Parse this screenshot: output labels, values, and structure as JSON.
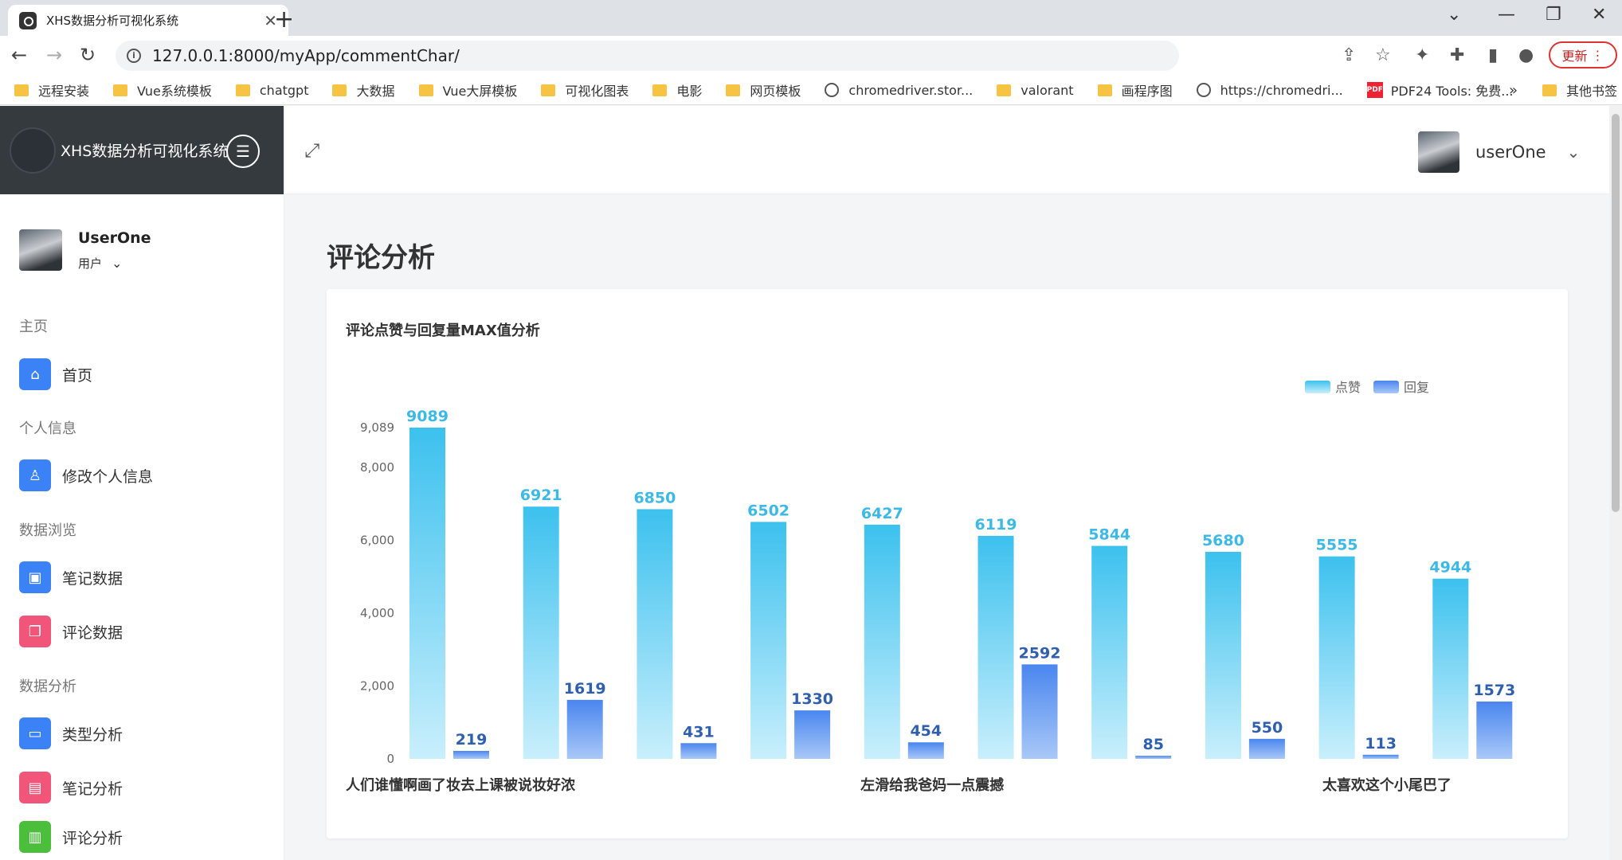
{
  "browser": {
    "tab_title": "XHS数据分析可视化系统",
    "url": "127.0.0.1:8000/myApp/commentChar/",
    "update_label": "更新",
    "bookmarks": [
      "远程安装",
      "Vue系统模板",
      "chatgpt",
      "大数据",
      "Vue大屏模板",
      "可视化图表",
      "电影",
      "网页模板",
      "chromedriver.stor...",
      "valorant",
      "画程序图",
      "https://chromedri...",
      "PDF24 Tools: 免费..."
    ],
    "bookmarks_other": "其他书签",
    "bookmarks_more": "»"
  },
  "sidebar": {
    "brand": "XHS数据分析可视化系统",
    "profile_name": "UserOne",
    "profile_role": "用户",
    "sections": {
      "home": "主页",
      "personal": "个人信息",
      "browse": "数据浏览",
      "analysis": "数据分析"
    },
    "items": {
      "home": "首页",
      "edit_profile": "修改个人信息",
      "note_data": "笔记数据",
      "comment_data": "评论数据",
      "type_analysis": "类型分析",
      "note_analysis": "笔记分析",
      "comment_analysis": "评论分析"
    }
  },
  "topbar": {
    "user_name": "userOne"
  },
  "page": {
    "title": "评论分析"
  },
  "card": {
    "title": "评论点赞与回复量MAX值分析"
  },
  "colors": {
    "like_top": "#3cc1ee",
    "like_bottom": "#c9effc",
    "reply_top": "#4a86ef",
    "reply_bottom": "#a9c8f7",
    "label_like": "#3cb9e6",
    "label_reply": "#2f5faf"
  },
  "chart_data": {
    "type": "bar",
    "categories": [
      "人们谁懂啊画了妆去上课被说妆好浓",
      "",
      "",
      "",
      "左滑给我爸妈一点震撼",
      "",
      "",
      "",
      "太喜欢这个小尾巴了",
      ""
    ],
    "series": [
      {
        "name": "点赞",
        "values": [
          9089,
          6921,
          6850,
          6502,
          6427,
          6119,
          5844,
          5680,
          5555,
          4944
        ]
      },
      {
        "name": "回复",
        "values": [
          219,
          1619,
          431,
          1330,
          454,
          2592,
          85,
          550,
          113,
          1573
        ]
      }
    ],
    "y_ticks": [
      "0",
      "2,000",
      "4,000",
      "6,000",
      "8,000",
      "9,089"
    ],
    "ylim": [
      0,
      9089
    ],
    "legend_position": "top-right"
  }
}
